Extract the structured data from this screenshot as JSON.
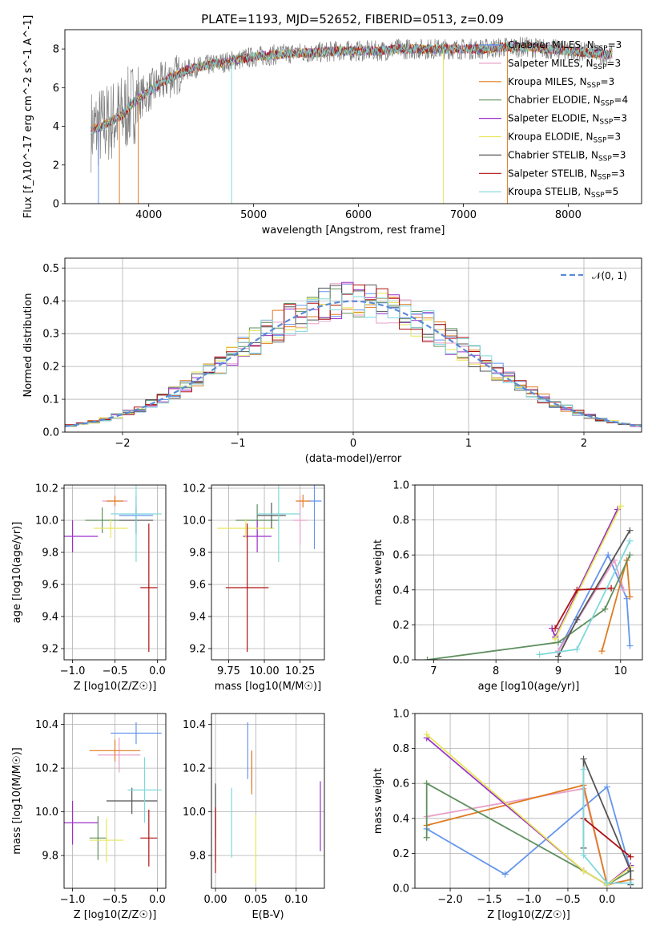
{
  "figure": {
    "title": "PLATE=1193, MJD=52652, FIBERID=0513, z=0.09"
  },
  "colors": {
    "chabrier_miles": "#6495ed",
    "salpeter_miles": "#e8a0c8",
    "kroupa_miles": "#e07b20",
    "chabrier_elodie": "#5f8f5f",
    "salpeter_elodie": "#9b30c8",
    "kroupa_elodie": "#e6e65a",
    "chabrier_stelib": "#555555",
    "salpeter_stelib": "#b01010",
    "kroupa_stelib": "#7fd8dc",
    "observed": "#808080",
    "normal": "#5b8ad6"
  },
  "chart_data": [
    {
      "id": "spectrum",
      "type": "line",
      "xlabel": "wavelength [Angstrom, rest frame]",
      "ylabel": "Flux [f_λ10^-17 erg cm^-2 s^-1 A^-1]",
      "xlim": [
        3200,
        8700
      ],
      "ylim": [
        0,
        9
      ],
      "xticks": [
        "4000",
        "5000",
        "6000",
        "7000",
        "8000"
      ],
      "yticks": [
        "0",
        "2",
        "4",
        "6",
        "8"
      ],
      "grid": false,
      "legend_position": "upper right",
      "series": [
        {
          "name": "Chabrier MILES, N_SSP=3",
          "key": "chabrier_miles"
        },
        {
          "name": "Salpeter MILES, N_SSP=3",
          "key": "salpeter_miles"
        },
        {
          "name": "Kroupa MILES, N_SSP=3",
          "key": "kroupa_miles"
        },
        {
          "name": "Chabrier ELODIE, N_SSP=4",
          "key": "chabrier_elodie"
        },
        {
          "name": "Salpeter ELODIE, N_SSP=3",
          "key": "salpeter_elodie"
        },
        {
          "name": "Kroupa ELODIE, N_SSP=3",
          "key": "kroupa_elodie"
        },
        {
          "name": "Chabrier STELIB, N_SSP=3",
          "key": "chabrier_stelib"
        },
        {
          "name": "Salpeter STELIB, N_SSP=3",
          "key": "salpeter_stelib"
        },
        {
          "name": "Kroupa STELIB, N_SSP=5",
          "key": "kroupa_stelib"
        }
      ],
      "continuum": {
        "x": [
          3450,
          3550,
          3650,
          3750,
          3850,
          3950,
          4050,
          4200,
          4400,
          4600,
          4800,
          5000,
          5200,
          5400,
          5600,
          5800,
          6000,
          6200,
          6400,
          6600,
          6800,
          7000,
          7200,
          7400,
          7600,
          7800,
          8000,
          8200,
          8400
        ],
        "y": [
          3.8,
          4.0,
          4.3,
          4.6,
          5.2,
          5.6,
          6.0,
          6.5,
          7.0,
          7.2,
          7.4,
          7.6,
          7.7,
          7.8,
          7.8,
          7.9,
          7.9,
          7.9,
          8.0,
          8.0,
          8.0,
          8.0,
          8.0,
          8.1,
          8.1,
          8.0,
          7.9,
          7.8,
          7.7
        ]
      },
      "features": [
        {
          "x": 3520,
          "ymin": 0.0
        },
        {
          "x": 3720,
          "ymin": 0.0
        },
        {
          "x": 3900,
          "ymin": 0.0
        },
        {
          "x": 4790,
          "ymin": 0.0
        },
        {
          "x": 6810,
          "ymin": 0.0
        },
        {
          "x": 7420,
          "ymin": 0.0
        }
      ]
    },
    {
      "id": "residuals",
      "type": "histogram",
      "xlabel": "(data-model)/error",
      "ylabel": "Normed distribution",
      "xlim": [
        -2.5,
        2.5
      ],
      "ylim": [
        0,
        0.53
      ],
      "xticks": [
        "−2",
        "−1",
        "0",
        "1",
        "2"
      ],
      "yticks": [
        "0.0",
        "0.1",
        "0.2",
        "0.3",
        "0.4",
        "0.5"
      ],
      "grid": true,
      "legend": "𝒩(0, 1)",
      "legend_position": "upper right",
      "bin_width": 0.1
    },
    {
      "id": "Z_age",
      "type": "errorbar",
      "xlabel": "Z [log10(Z/Z☉)]",
      "ylabel": "age  [log10(age/yr)]",
      "xlim": [
        -1.1,
        0.1
      ],
      "ylim": [
        9.13,
        10.22
      ],
      "xticks": [
        "−1.0",
        "−0.5",
        "0.0"
      ],
      "yticks": [
        "9.2",
        "9.4",
        "9.6",
        "9.8",
        "10.0",
        "10.2"
      ],
      "grid": true,
      "points": [
        {
          "key": "chabrier_miles",
          "x": -0.25,
          "xerr": 0.2,
          "y": 10.03,
          "yerr": 0.12
        },
        {
          "key": "salpeter_miles",
          "x": -0.5,
          "xerr": 0.15,
          "y": 10.12,
          "yerr": 0.04
        },
        {
          "key": "kroupa_miles",
          "x": -0.5,
          "xerr": 0.1,
          "y": 10.12,
          "yerr": 0.03
        },
        {
          "key": "chabrier_elodie",
          "x": -0.65,
          "xerr": 0.2,
          "y": 10.0,
          "yerr": 0.08
        },
        {
          "key": "salpeter_elodie",
          "x": -1.0,
          "xerr": 0.3,
          "y": 9.9,
          "yerr": 0.1
        },
        {
          "key": "kroupa_elodie",
          "x": -0.55,
          "xerr": 0.2,
          "y": 9.95,
          "yerr": 0.06
        },
        {
          "key": "chabrier_stelib",
          "x": -0.25,
          "xerr": 0.2,
          "y": 10.0,
          "yerr": 0.08
        },
        {
          "key": "salpeter_stelib",
          "x": -0.1,
          "xerr": 0.1,
          "y": 9.58,
          "yerr": 0.4
        },
        {
          "key": "kroupa_stelib",
          "x": -0.25,
          "xerr": 0.3,
          "y": 10.04,
          "yerr": 0.3
        }
      ]
    },
    {
      "id": "mass_age",
      "type": "errorbar",
      "xlabel": "mass [log10(M/M☉)]",
      "ylabel": "",
      "xlim": [
        9.63,
        10.42
      ],
      "ylim": [
        9.13,
        10.22
      ],
      "xticks": [
        "9.75",
        "10.00",
        "10.25"
      ],
      "yticks": [
        "9.2",
        "9.4",
        "9.6",
        "9.8",
        "10.0",
        "10.2"
      ],
      "grid": true,
      "points": [
        {
          "key": "chabrier_miles",
          "x": 10.35,
          "xerr": 0.05,
          "y": 10.12,
          "yerr": 0.3
        },
        {
          "key": "salpeter_miles",
          "x": 10.25,
          "xerr": 0.05,
          "y": 10.0,
          "yerr": 0.15
        },
        {
          "key": "kroupa_miles",
          "x": 10.27,
          "xerr": 0.05,
          "y": 10.12,
          "yerr": 0.04
        },
        {
          "key": "chabrier_elodie",
          "x": 9.95,
          "xerr": 0.15,
          "y": 10.0,
          "yerr": 0.1
        },
        {
          "key": "salpeter_elodie",
          "x": 9.95,
          "xerr": 0.1,
          "y": 9.9,
          "yerr": 0.1
        },
        {
          "key": "kroupa_elodie",
          "x": 9.87,
          "xerr": 0.2,
          "y": 9.95,
          "yerr": 0.06
        },
        {
          "key": "chabrier_stelib",
          "x": 10.05,
          "xerr": 0.1,
          "y": 10.03,
          "yerr": 0.08
        },
        {
          "key": "salpeter_stelib",
          "x": 9.88,
          "xerr": 0.15,
          "y": 9.58,
          "yerr": 0.4
        },
        {
          "key": "kroupa_stelib",
          "x": 10.1,
          "xerr": 0.15,
          "y": 10.04,
          "yerr": 0.3
        }
      ]
    },
    {
      "id": "age_weight",
      "type": "line",
      "xlabel": "age  [log10(age/yr)]",
      "ylabel": "mass weight",
      "xlim": [
        6.7,
        10.35
      ],
      "ylim": [
        0,
        1
      ],
      "xticks": [
        "7",
        "8",
        "9",
        "10"
      ],
      "yticks": [
        "0.0",
        "0.2",
        "0.4",
        "0.6",
        "0.8",
        "1.0"
      ],
      "grid": true,
      "series": [
        {
          "key": "chabrier_miles",
          "x": [
            10.15,
            10.1,
            9.8,
            9.0
          ],
          "y": [
            0.08,
            0.35,
            0.6,
            0.05
          ]
        },
        {
          "key": "salpeter_miles",
          "x": [
            10.05,
            9.9,
            9.0
          ],
          "y": [
            0.4,
            0.57,
            0.05
          ]
        },
        {
          "key": "kroupa_miles",
          "x": [
            10.15,
            10.1,
            9.7
          ],
          "y": [
            0.36,
            0.57,
            0.05
          ]
        },
        {
          "key": "chabrier_elodie",
          "x": [
            10.15,
            9.75,
            9.0,
            6.9
          ],
          "y": [
            0.6,
            0.29,
            0.1,
            0.0
          ]
        },
        {
          "key": "salpeter_elodie",
          "x": [
            9.95,
            8.95,
            8.9
          ],
          "y": [
            0.86,
            0.13,
            0.18
          ]
        },
        {
          "key": "kroupa_elodie",
          "x": [
            10.0,
            8.95
          ],
          "y": [
            0.88,
            0.12
          ]
        },
        {
          "key": "chabrier_stelib",
          "x": [
            10.15,
            9.3,
            9.0
          ],
          "y": [
            0.74,
            0.23,
            0.02
          ]
        },
        {
          "key": "salpeter_stelib",
          "x": [
            9.85,
            9.3,
            8.95
          ],
          "y": [
            0.41,
            0.4,
            0.18
          ]
        },
        {
          "key": "kroupa_stelib",
          "x": [
            10.15,
            9.3,
            8.7
          ],
          "y": [
            0.68,
            0.06,
            0.03
          ]
        }
      ]
    },
    {
      "id": "Z_mass",
      "type": "errorbar",
      "xlabel": "Z [log10(Z/Z☉)]",
      "ylabel": "mass [log10(M/M☉)]",
      "xlim": [
        -1.1,
        0.1
      ],
      "ylim": [
        9.65,
        10.45
      ],
      "xticks": [
        "−1.0",
        "−0.5",
        "0.0"
      ],
      "yticks": [
        "9.8",
        "10.0",
        "10.2",
        "10.4"
      ],
      "grid": true,
      "points": [
        {
          "key": "chabrier_miles",
          "x": -0.25,
          "xerr": 0.3,
          "y": 10.36,
          "yerr": 0.05
        },
        {
          "key": "salpeter_miles",
          "x": -0.45,
          "xerr": 0.25,
          "y": 10.26,
          "yerr": 0.08
        },
        {
          "key": "kroupa_miles",
          "x": -0.5,
          "xerr": 0.3,
          "y": 10.28,
          "yerr": 0.05
        },
        {
          "key": "chabrier_elodie",
          "x": -0.7,
          "xerr": 0.1,
          "y": 9.88,
          "yerr": 0.1
        },
        {
          "key": "salpeter_elodie",
          "x": -1.0,
          "xerr": 0.3,
          "y": 9.95,
          "yerr": 0.1
        },
        {
          "key": "kroupa_elodie",
          "x": -0.6,
          "xerr": 0.2,
          "y": 9.87,
          "yerr": 0.1
        },
        {
          "key": "chabrier_stelib",
          "x": -0.3,
          "xerr": 0.3,
          "y": 10.05,
          "yerr": 0.06
        },
        {
          "key": "salpeter_stelib",
          "x": -0.1,
          "xerr": 0.1,
          "y": 9.88,
          "yerr": 0.13
        },
        {
          "key": "kroupa_stelib",
          "x": -0.15,
          "xerr": 0.2,
          "y": 10.1,
          "yerr": 0.15
        }
      ]
    },
    {
      "id": "ebv_mass",
      "type": "errorbar",
      "xlabel": "E(B-V)",
      "ylabel": "",
      "xlim": [
        -0.005,
        0.135
      ],
      "ylim": [
        9.65,
        10.45
      ],
      "xticks": [
        "0.00",
        "0.05",
        "0.10"
      ],
      "yticks": [
        "9.8",
        "10.0",
        "10.2",
        "10.4"
      ],
      "grid": true,
      "points": [
        {
          "key": "chabrier_miles",
          "x": 0.04,
          "y": 10.28,
          "yerr": 0.13
        },
        {
          "key": "salpeter_miles",
          "x": 0.045,
          "y": 10.2,
          "yerr": 0.08
        },
        {
          "key": "kroupa_miles",
          "x": 0.045,
          "y": 10.18,
          "yerr": 0.1
        },
        {
          "key": "chabrier_elodie",
          "x": 0.0,
          "y": 10.0,
          "yerr": 0.12
        },
        {
          "key": "salpeter_elodie",
          "x": 0.13,
          "y": 9.98,
          "yerr": 0.16
        },
        {
          "key": "kroupa_elodie",
          "x": 0.05,
          "y": 9.83,
          "yerr": 0.16
        },
        {
          "key": "chabrier_stelib",
          "x": 0.0,
          "y": 9.95,
          "yerr": 0.18
        },
        {
          "key": "salpeter_stelib",
          "x": 0.0,
          "y": 9.87,
          "yerr": 0.15
        },
        {
          "key": "kroupa_stelib",
          "x": 0.02,
          "y": 9.95,
          "yerr": 0.16
        }
      ]
    },
    {
      "id": "Z_weight",
      "type": "line",
      "xlabel": "Z [log10(Z/Z☉)]",
      "ylabel": "mass weight",
      "xlim": [
        -2.45,
        0.45
      ],
      "ylim": [
        0,
        1
      ],
      "xticks": [
        "−2.0",
        "−1.5",
        "−1.0",
        "−0.5",
        "0.0"
      ],
      "yticks": [
        "0.0",
        "0.2",
        "0.4",
        "0.6",
        "0.8",
        "1.0"
      ],
      "grid": true,
      "series": [
        {
          "key": "chabrier_miles",
          "x": [
            -2.3,
            -1.3,
            0.0,
            0.3
          ],
          "y": [
            0.34,
            0.08,
            0.58,
            0.1
          ]
        },
        {
          "key": "salpeter_miles",
          "x": [
            -2.3,
            -0.3,
            0.0,
            0.3
          ],
          "y": [
            0.41,
            0.57,
            0.02,
            0.05
          ]
        },
        {
          "key": "kroupa_miles",
          "x": [
            -2.3,
            -0.3,
            0.0,
            0.3
          ],
          "y": [
            0.36,
            0.59,
            0.02,
            0.05
          ]
        },
        {
          "key": "chabrier_elodie",
          "x": [
            -2.3,
            -2.3,
            -0.3,
            0.0,
            0.3
          ],
          "y": [
            0.29,
            0.6,
            0.1,
            0.02,
            0.1
          ]
        },
        {
          "key": "salpeter_elodie",
          "x": [
            -2.3,
            -0.3,
            0.0,
            0.3
          ],
          "y": [
            0.86,
            0.1,
            0.02,
            0.13
          ]
        },
        {
          "key": "kroupa_elodie",
          "x": [
            -2.3,
            -0.3,
            0.0,
            0.3
          ],
          "y": [
            0.88,
            0.1,
            0.02,
            0.12
          ]
        },
        {
          "key": "chabrier_stelib",
          "x": [
            -0.3,
            -0.3,
            0.3,
            0.3
          ],
          "y": [
            0.23,
            0.74,
            0.1,
            0.02
          ]
        },
        {
          "key": "salpeter_stelib",
          "x": [
            -0.3,
            0.3
          ],
          "y": [
            0.4,
            0.18
          ]
        },
        {
          "key": "kroupa_stelib",
          "x": [
            -0.3,
            -0.3,
            0.0,
            0.3
          ],
          "y": [
            0.68,
            0.19,
            0.03,
            0.03
          ]
        }
      ]
    }
  ]
}
